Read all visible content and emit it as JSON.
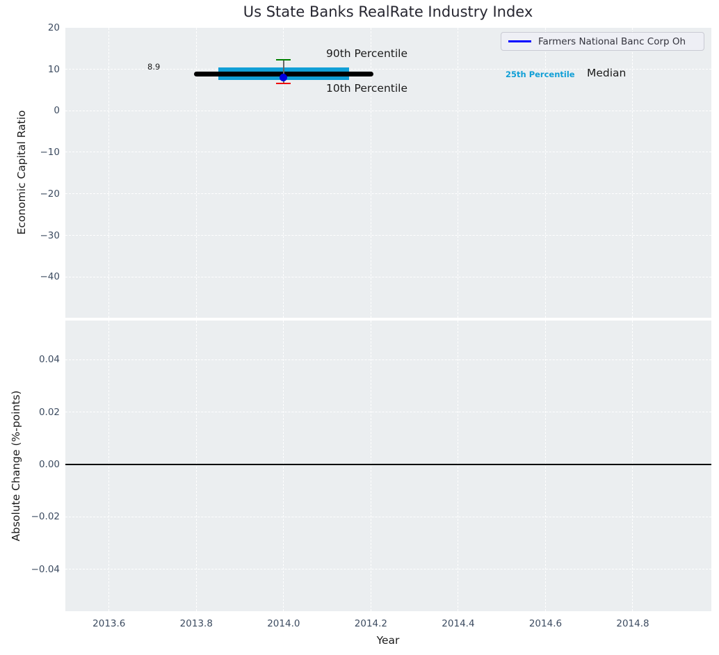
{
  "colors": {
    "plot_bg": "#ebeef0",
    "grid": "#ffffff",
    "tick_label": "#3c4b60",
    "axis_label": "#1a1a1a",
    "title": "#262630",
    "errorbar_line": "#666666"
  },
  "chart_data": [
    {
      "type": "percentile_errorbar",
      "title": "Us State Banks RealRate Industry Index",
      "ylabel": "Economic Capital Ratio",
      "xlabel": "Year",
      "xlim": [
        2013.5,
        2014.98
      ],
      "ylim": [
        -49.8,
        20
      ],
      "yticks": [
        20,
        10,
        0,
        -10,
        -20,
        -30,
        -40
      ],
      "ytick_labels": [
        "20",
        "10",
        "0",
        "−10",
        "−20",
        "−30",
        "−40"
      ],
      "xticks": [
        2013.6,
        2013.8,
        2014.0,
        2014.2,
        2014.4,
        2014.6,
        2014.8
      ],
      "xtick_labels": [
        "2013.6",
        "2013.8",
        "2014.0",
        "2014.2",
        "2014.4",
        "2014.6",
        "2014.8"
      ],
      "grid": "white-dashed",
      "legend": {
        "position": "upper right",
        "label": "Farmers National Banc Corp Oh",
        "line_color": "#0000ff"
      },
      "series": [
        {
          "name": "Median",
          "type": "hline",
          "value": 8.9,
          "x_from": 2013.8,
          "x_to": 2014.2,
          "color": "#000000"
        },
        {
          "name": "25th Percentile",
          "type": "hband",
          "value": 8.9,
          "x_from": 2013.85,
          "x_to": 2014.15,
          "color": "#119fd6"
        },
        {
          "name": "90th Percentile",
          "type": "errorbar_cap",
          "value": 12.3,
          "x": 2014.0,
          "color": "#008000"
        },
        {
          "name": "10th Percentile",
          "type": "errorbar_cap",
          "value": 6.6,
          "x": 2014.0,
          "color": "#ee0000"
        },
        {
          "name": "Farmers National Banc Corp Oh",
          "type": "point",
          "value": 8.0,
          "x": 2014.0,
          "color": "#0000e0"
        }
      ],
      "annotations": {
        "p90_label": "90th Percentile",
        "p10_label": "10th Percentile",
        "median_value": "8.9",
        "p25_label": "25th Percentile",
        "median_label": "Median"
      }
    },
    {
      "type": "line",
      "ylabel": "Absolute Change (%-points)",
      "ylim": [
        -0.056,
        0.055
      ],
      "yticks": [
        0.04,
        0.02,
        0,
        -0.02,
        -0.04
      ],
      "ytick_labels": [
        "0.04",
        "0.02",
        "0.00",
        "−0.02",
        "−0.04"
      ],
      "zero_line": 0,
      "series": []
    }
  ]
}
